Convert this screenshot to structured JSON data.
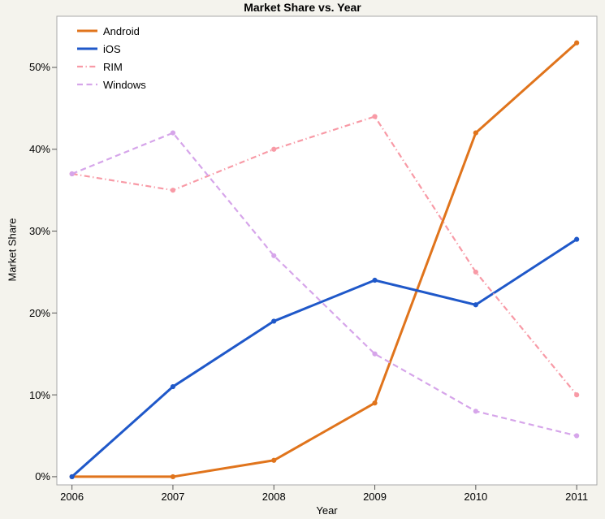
{
  "chart_data": {
    "type": "line",
    "title": "Market Share vs. Year",
    "xlabel": "Year",
    "ylabel": "Market Share",
    "x": [
      2006,
      2007,
      2008,
      2009,
      2010,
      2011
    ],
    "x_tick_labels": [
      "2006",
      "2007",
      "2008",
      "2009",
      "2010",
      "2011"
    ],
    "y_tick_values": [
      0,
      10,
      20,
      30,
      40,
      50
    ],
    "y_tick_labels": [
      "0%",
      "10%",
      "20%",
      "30%",
      "40%",
      "50%"
    ],
    "xlim": [
      2005.85,
      2011.2
    ],
    "ylim": [
      -1,
      56.25
    ],
    "grid": false,
    "legend_position": "top-left-inside",
    "series": [
      {
        "name": "Android",
        "values": [
          0,
          0,
          2,
          9,
          42,
          53
        ],
        "color": "#e0741c",
        "line_style": "solid",
        "line_width": 3
      },
      {
        "name": "iOS",
        "values": [
          0,
          11,
          19,
          24,
          21,
          29
        ],
        "color": "#1f58c9",
        "line_style": "solid",
        "line_width": 3
      },
      {
        "name": "RIM",
        "values": [
          37,
          35,
          40,
          44,
          25,
          10
        ],
        "color": "#f89aa6",
        "line_style": "dashdot",
        "line_width": 2.2
      },
      {
        "name": "Windows",
        "values": [
          37,
          42,
          27,
          15,
          8,
          5
        ],
        "color": "#d6a5ea",
        "line_style": "dashed",
        "line_width": 2.2
      }
    ]
  },
  "colors": {
    "background": "#f4f3ed",
    "plot_background": "#ffffff",
    "plot_border": "#a9a9a9",
    "tick": "#555555",
    "text": "#000000"
  }
}
